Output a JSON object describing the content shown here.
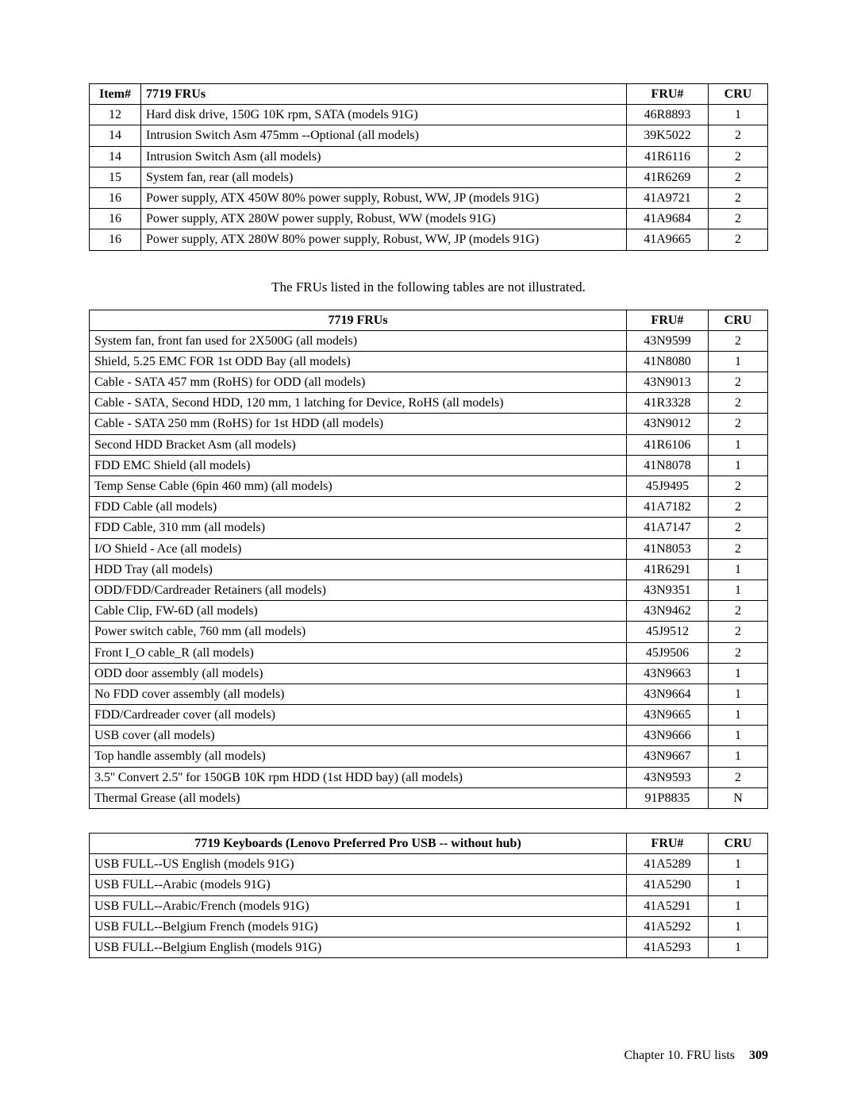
{
  "table1": {
    "headers": {
      "item": "Item#",
      "desc": "7719 FRUs",
      "fru": "FRU#",
      "cru": "CRU"
    },
    "rows": [
      {
        "item": "12",
        "desc": "Hard disk drive, 150G 10K rpm, SATA (models 91G)",
        "fru": "46R8893",
        "cru": "1"
      },
      {
        "item": "14",
        "desc": "Intrusion Switch Asm 475mm --Optional (all models)",
        "fru": "39K5022",
        "cru": "2"
      },
      {
        "item": "14",
        "desc": "Intrusion Switch Asm (all models)",
        "fru": "41R6116",
        "cru": "2"
      },
      {
        "item": "15",
        "desc": "System fan, rear (all models)",
        "fru": "41R6269",
        "cru": "2"
      },
      {
        "item": "16",
        "desc": "Power supply, ATX 450W 80% power supply, Robust, WW, JP (models 91G)",
        "fru": "41A9721",
        "cru": "2"
      },
      {
        "item": "16",
        "desc": "Power supply, ATX 280W power supply, Robust, WW (models 91G)",
        "fru": "41A9684",
        "cru": "2"
      },
      {
        "item": "16",
        "desc": "Power supply, ATX 280W 80% power supply, Robust, WW, JP (models 91G)",
        "fru": "41A9665",
        "cru": "2"
      }
    ]
  },
  "intertext": "The FRUs listed in the following tables are not illustrated.",
  "table2": {
    "headers": {
      "desc": "7719 FRUs",
      "fru": "FRU#",
      "cru": "CRU"
    },
    "rows": [
      {
        "desc": "System fan, front fan used for 2X500G (all models)",
        "fru": "43N9599",
        "cru": "2"
      },
      {
        "desc": "Shield, 5.25 EMC FOR 1st ODD Bay (all models)",
        "fru": "41N8080",
        "cru": "1"
      },
      {
        "desc": "Cable - SATA 457 mm (RoHS) for ODD (all models)",
        "fru": "43N9013",
        "cru": "2"
      },
      {
        "desc": "Cable - SATA, Second HDD, 120 mm, 1 latching for Device, RoHS (all models)",
        "fru": "41R3328",
        "cru": "2"
      },
      {
        "desc": "Cable - SATA 250 mm (RoHS) for 1st HDD (all models)",
        "fru": "43N9012",
        "cru": "2"
      },
      {
        "desc": "Second HDD Bracket Asm (all models)",
        "fru": "41R6106",
        "cru": "1"
      },
      {
        "desc": "FDD EMC Shield (all models)",
        "fru": "41N8078",
        "cru": "1"
      },
      {
        "desc": "Temp Sense Cable (6pin 460 mm) (all models)",
        "fru": "45J9495",
        "cru": "2"
      },
      {
        "desc": "FDD Cable (all models)",
        "fru": "41A7182",
        "cru": "2"
      },
      {
        "desc": "FDD Cable, 310 mm (all models)",
        "fru": "41A7147",
        "cru": "2"
      },
      {
        "desc": "I/O Shield - Ace (all models)",
        "fru": "41N8053",
        "cru": "2"
      },
      {
        "desc": "HDD Tray (all models)",
        "fru": "41R6291",
        "cru": "1"
      },
      {
        "desc": "ODD/FDD/Cardreader Retainers (all models)",
        "fru": "43N9351",
        "cru": "1"
      },
      {
        "desc": "Cable Clip, FW-6D (all models)",
        "fru": "43N9462",
        "cru": "2"
      },
      {
        "desc": "Power switch cable, 760 mm (all models)",
        "fru": "45J9512",
        "cru": "2"
      },
      {
        "desc": "Front I_O cable_R (all models)",
        "fru": "45J9506",
        "cru": "2"
      },
      {
        "desc": "ODD door assembly (all models)",
        "fru": "43N9663",
        "cru": "1"
      },
      {
        "desc": "No FDD cover assembly (all models)",
        "fru": "43N9664",
        "cru": "1"
      },
      {
        "desc": "FDD/Cardreader cover (all models)",
        "fru": "43N9665",
        "cru": "1"
      },
      {
        "desc": "USB cover (all models)",
        "fru": "43N9666",
        "cru": "1"
      },
      {
        "desc": "Top handle assembly (all models)",
        "fru": "43N9667",
        "cru": "1"
      },
      {
        "desc": "3.5'' Convert 2.5'' for 150GB 10K rpm HDD (1st HDD bay) (all models)",
        "fru": "43N9593",
        "cru": "2"
      },
      {
        "desc": "Thermal Grease (all models)",
        "fru": "91P8835",
        "cru": "N"
      }
    ]
  },
  "table3": {
    "headers": {
      "desc": "7719 Keyboards (Lenovo Preferred Pro USB -- without hub)",
      "fru": "FRU#",
      "cru": "CRU"
    },
    "rows": [
      {
        "desc": "USB FULL--US English (models 91G)",
        "fru": "41A5289",
        "cru": "1"
      },
      {
        "desc": "USB FULL--Arabic (models 91G)",
        "fru": "41A5290",
        "cru": "1"
      },
      {
        "desc": "USB FULL--Arabic/French (models 91G)",
        "fru": "41A5291",
        "cru": "1"
      },
      {
        "desc": "USB FULL--Belgium French (models 91G)",
        "fru": "41A5292",
        "cru": "1"
      },
      {
        "desc": "USB FULL--Belgium English (models 91G)",
        "fru": "41A5293",
        "cru": "1"
      }
    ]
  },
  "footer": {
    "chapter": "Chapter 10. FRU lists",
    "page": "309"
  }
}
